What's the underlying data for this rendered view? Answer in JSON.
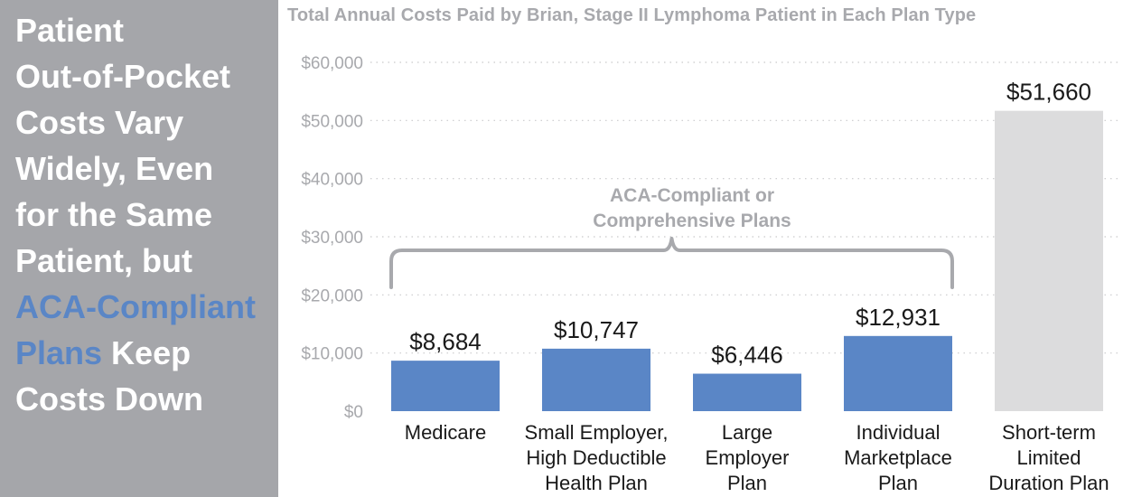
{
  "sidebar": {
    "heading_lines": [
      "Patient",
      "Out-of-Pocket",
      "Costs Vary",
      "Widely, Even",
      "for the Same",
      "Patient, but"
    ],
    "highlight_line": "ACA-Compliant",
    "highlight_word": "Plans",
    "line_after_highlight": " Keep",
    "last_line": "Costs Down"
  },
  "colors": {
    "sidebar_bg": "#a5a6aa",
    "bar_aca": "#5a86c6",
    "bar_other": "#dcdcdd",
    "highlight_text": "#5a86c6",
    "title_text": "#a8a9ad"
  },
  "chart_data": {
    "type": "bar",
    "title": "Total Annual Costs Paid by Brian, Stage II Lymphoma Patient in Each Plan Type",
    "xlabel": "",
    "ylabel": "",
    "ylim": [
      0,
      60000
    ],
    "yticks": [
      0,
      10000,
      20000,
      30000,
      40000,
      50000,
      60000
    ],
    "ytick_labels": [
      "$0",
      "$10,000",
      "$20,000",
      "$30,000",
      "$40,000",
      "$50,000",
      "$60,000"
    ],
    "grid": true,
    "categories": [
      [
        "Medicare"
      ],
      [
        "Small Employer,",
        "High Deductible",
        "Health Plan"
      ],
      [
        "Large",
        "Employer",
        "Plan"
      ],
      [
        "Individual",
        "Marketplace",
        "Plan"
      ],
      [
        "Short-term",
        "Limited",
        "Duration Plan"
      ]
    ],
    "values": [
      8684,
      10747,
      6446,
      12931,
      51660
    ],
    "value_labels": [
      "$8,684",
      "$10,747",
      "$6,446",
      "$12,931",
      "$51,660"
    ],
    "bar_groups": [
      "aca",
      "aca",
      "aca",
      "aca",
      "other"
    ],
    "annotation": {
      "lines": [
        "ACA-Compliant or",
        "Comprehensive Plans"
      ],
      "spans_categories": [
        0,
        3
      ]
    }
  }
}
